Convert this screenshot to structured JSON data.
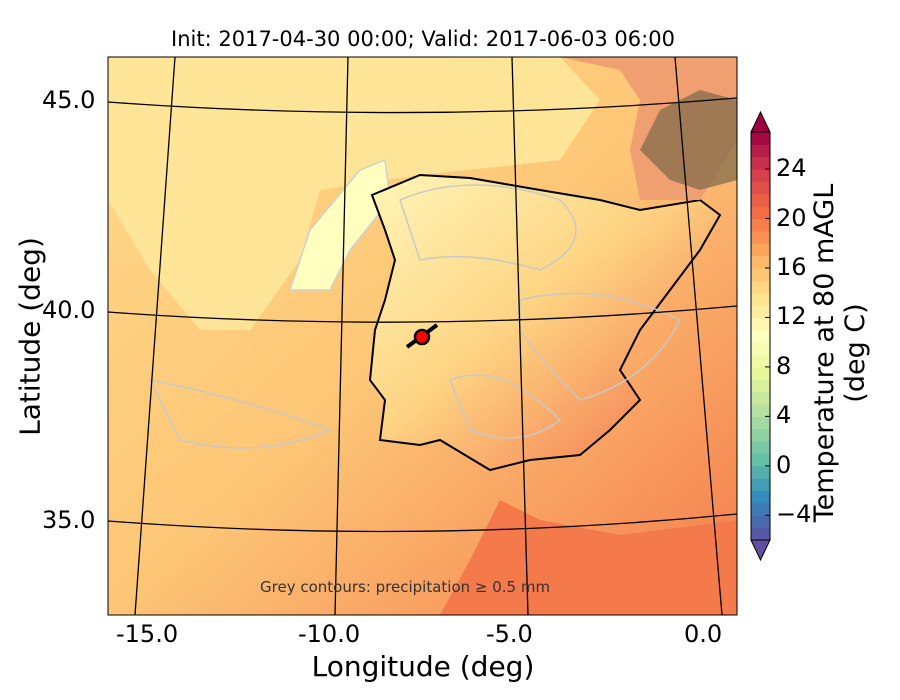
{
  "title": "Init: 2017-04-30 00:00; Valid: 2017-06-03 06:00",
  "xlabel": "Longitude (deg)",
  "ylabel": "Latitude (deg)",
  "x_ticks": [
    "-15.0",
    "-10.0",
    "-5.0",
    "0.0"
  ],
  "y_ticks": [
    "45.0",
    "40.0",
    "35.0"
  ],
  "annotation": "Grey contours: precipitation ≥ 0.5 mm",
  "colorbar": {
    "label": "Temperature at 80 mAGL (deg C)",
    "ticks": [
      "24",
      "20",
      "16",
      "12",
      "8",
      "4",
      "0",
      "−4"
    ],
    "tick_values": [
      24,
      20,
      16,
      12,
      8,
      4,
      0,
      -4
    ],
    "range": [
      -6,
      27
    ],
    "extend": "both",
    "colormap": [
      "#5e4fa2",
      "#3288bd",
      "#66c2a5",
      "#abdda4",
      "#e6f598",
      "#ffffbf",
      "#fee08b",
      "#fdae61",
      "#f46d43",
      "#d53e4f",
      "#9e0142"
    ]
  },
  "map": {
    "lon_range": [
      -16,
      0.2
    ],
    "lat_range": [
      32.8,
      46
    ],
    "marker": {
      "lon": -7.6,
      "lat": 39.4,
      "color": "#ff0000"
    },
    "colors": {
      "sea": "#fdc879",
      "land_cool": "#fff3b0",
      "land_warm": "#f88d52",
      "contour": "#c8c8c8",
      "snow_dark": "#6b5a3a"
    }
  },
  "chart_data": {
    "type": "heatmap",
    "title": "Init: 2017-04-30 00:00; Valid: 2017-06-03 06:00",
    "xlabel": "Longitude (deg)",
    "ylabel": "Latitude (deg)",
    "xlim": [
      -16,
      0.2
    ],
    "ylim": [
      32.8,
      46
    ],
    "colorbar_label": "Temperature at 80 mAGL (deg C)",
    "colorbar_range": [
      -6,
      27
    ]
  }
}
